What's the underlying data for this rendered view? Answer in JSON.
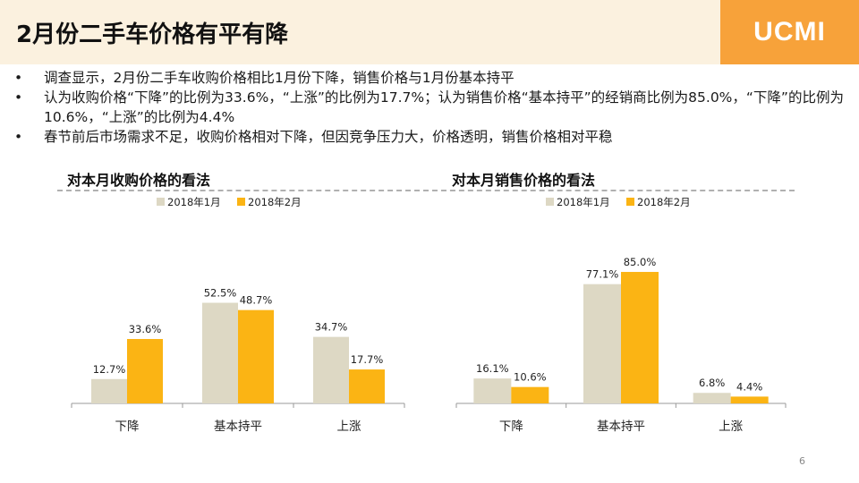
{
  "slide": {
    "title": "2月份二手车价格有平有降",
    "logo": "UCMI",
    "page_number": "6",
    "bullets": [
      "调查显示，2月份二手车收购价格相比1月份下降，销售价格与1月份基本持平",
      "认为收购价格“下降”的比例为33.6%，“上涨”的比例为17.7%；认为销售价格“基本持平”的经销商比例为85.0%，“下降”的比例为10.6%，“上涨”的比例为4.4%",
      "春节前后市场需求不足，收购价格相对下降，但因竞争压力大，价格透明，销售价格相对平稳"
    ]
  },
  "colors": {
    "header_bg": "#fbf1df",
    "logo_bg": "#f7a23a",
    "series_jan": "#ddd8c4",
    "series_feb": "#fbb414"
  },
  "chart_data": [
    {
      "type": "bar",
      "title": "对本月收购价格的看法",
      "categories": [
        "下降",
        "基本持平",
        "上涨"
      ],
      "series": [
        {
          "name": "2018年1月",
          "values": [
            12.7,
            52.5,
            34.7
          ],
          "labels": [
            "12.7%",
            "52.5%",
            "34.7%"
          ]
        },
        {
          "name": "2018年2月",
          "values": [
            33.6,
            48.7,
            17.7
          ],
          "labels": [
            "33.6%",
            "48.7%",
            "17.7%"
          ]
        }
      ],
      "ylim": [
        0,
        70
      ],
      "legend_position": "top-center",
      "grid": false
    },
    {
      "type": "bar",
      "title": "对本月销售价格的看法",
      "categories": [
        "下降",
        "基本持平",
        "上涨"
      ],
      "series": [
        {
          "name": "2018年1月",
          "values": [
            16.1,
            77.1,
            6.8
          ],
          "labels": [
            "16.1%",
            "77.1%",
            "6.8%"
          ]
        },
        {
          "name": "2018年2月",
          "values": [
            10.6,
            85.0,
            4.4
          ],
          "labels": [
            "10.6%",
            "85.0%",
            "4.4%"
          ]
        }
      ],
      "ylim": [
        0,
        96
      ],
      "legend_position": "top-center",
      "grid": false
    }
  ]
}
